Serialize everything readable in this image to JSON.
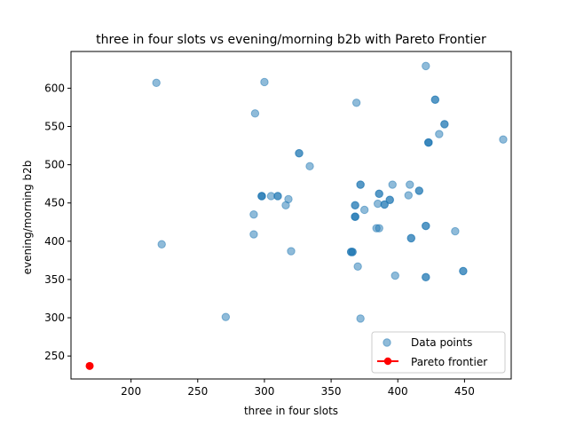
{
  "chart_data": {
    "type": "scatter",
    "title": "three in four slots vs evening/morning b2b with Pareto Frontier",
    "xlabel": "three in four slots",
    "ylabel": "evening/morning b2b",
    "xlim": [
      155,
      485
    ],
    "ylim": [
      220,
      648
    ],
    "x_ticks": [
      200,
      250,
      300,
      350,
      400,
      450
    ],
    "y_ticks": [
      250,
      300,
      350,
      400,
      450,
      500,
      550,
      600
    ],
    "grid": false,
    "legend": {
      "placement": "lower-right",
      "entries": [
        "Data points",
        "Pareto frontier"
      ]
    },
    "colors": {
      "data_points": "#1f77b4",
      "pareto": "#ff0000"
    },
    "series": [
      {
        "name": "Data points",
        "marker": "circle",
        "alpha": 0.5,
        "points": [
          [
            219,
            607
          ],
          [
            300,
            608
          ],
          [
            293,
            567
          ],
          [
            421,
            629
          ],
          [
            369,
            581
          ],
          [
            428,
            585
          ],
          [
            428,
            585
          ],
          [
            435,
            553
          ],
          [
            435,
            553
          ],
          [
            431,
            540
          ],
          [
            479,
            533
          ],
          [
            423,
            529
          ],
          [
            423,
            529
          ],
          [
            423,
            529
          ],
          [
            326,
            515
          ],
          [
            326,
            515
          ],
          [
            334,
            498
          ],
          [
            372,
            474
          ],
          [
            372,
            474
          ],
          [
            396,
            474
          ],
          [
            409,
            474
          ],
          [
            298,
            459
          ],
          [
            298,
            459
          ],
          [
            298,
            459
          ],
          [
            305,
            459
          ],
          [
            310,
            459
          ],
          [
            310,
            459
          ],
          [
            318,
            455
          ],
          [
            316,
            447
          ],
          [
            416,
            466
          ],
          [
            416,
            466
          ],
          [
            386,
            462
          ],
          [
            386,
            462
          ],
          [
            408,
            460
          ],
          [
            394,
            454
          ],
          [
            394,
            454
          ],
          [
            390,
            448
          ],
          [
            390,
            448
          ],
          [
            385,
            449
          ],
          [
            368,
            447
          ],
          [
            368,
            447
          ],
          [
            375,
            441
          ],
          [
            292,
            435
          ],
          [
            368,
            432
          ],
          [
            368,
            432
          ],
          [
            368,
            432
          ],
          [
            421,
            420
          ],
          [
            421,
            420
          ],
          [
            384,
            417
          ],
          [
            386,
            417
          ],
          [
            410,
            404
          ],
          [
            410,
            404
          ],
          [
            443,
            413
          ],
          [
            292,
            409
          ],
          [
            223,
            396
          ],
          [
            320,
            387
          ],
          [
            365,
            386
          ],
          [
            365,
            386
          ],
          [
            366,
            386
          ],
          [
            366,
            386
          ],
          [
            449,
            361
          ],
          [
            449,
            361
          ],
          [
            370,
            367
          ],
          [
            398,
            355
          ],
          [
            421,
            353
          ],
          [
            421,
            353
          ],
          [
            271,
            301
          ],
          [
            372,
            299
          ]
        ]
      },
      {
        "name": "Pareto frontier",
        "marker": "circle",
        "points": [
          [
            169,
            237
          ]
        ]
      }
    ]
  }
}
